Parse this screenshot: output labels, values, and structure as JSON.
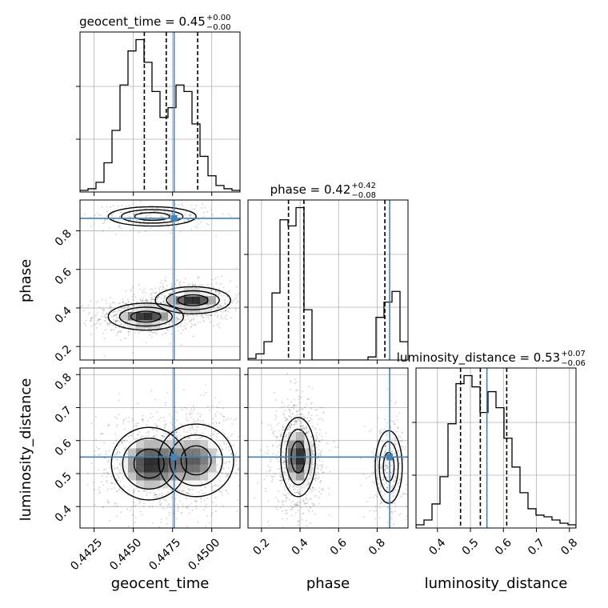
{
  "chart_data": {
    "type": "corner",
    "parameters": [
      "geocent_time",
      "phase",
      "luminosity_distance"
    ],
    "truths": {
      "geocent_time": 0.4476,
      "phase": 0.865,
      "luminosity_distance": 0.55
    },
    "ranges": {
      "geocent_time": [
        0.4416,
        0.4518
      ],
      "phase": [
        0.13,
        0.96
      ],
      "luminosity_distance": [
        0.335,
        0.82
      ]
    },
    "ticks": {
      "geocent_time": [
        "0.4425",
        "0.4450",
        "0.4475",
        "0.4500"
      ],
      "phase": [
        "0.2",
        "0.4",
        "0.6",
        "0.8"
      ],
      "luminosity_distance": [
        "0.4",
        "0.5",
        "0.6",
        "0.7",
        "0.8"
      ]
    },
    "diag_titles": [
      {
        "param": "geocent_time",
        "text": "geocent_time = 0.45",
        "sup": "+0.00",
        "sub": "−0.00"
      },
      {
        "param": "phase",
        "text": "phase = 0.42",
        "sup": "+0.42",
        "sub": "−0.08"
      },
      {
        "param": "luminosity_distance",
        "text": "luminosity_distance = 0.53",
        "sup": "+0.07",
        "sub": "−0.06"
      }
    ],
    "quantiles": {
      "geocent_time": [
        0.4457,
        0.4471,
        0.4491
      ],
      "phase": [
        0.34,
        0.42,
        0.84
      ],
      "luminosity_distance": [
        0.47,
        0.53,
        0.61
      ]
    },
    "histograms": {
      "geocent_time": {
        "edges": [
          0.4416,
          0.44211,
          0.44262,
          0.44313,
          0.44364,
          0.44415,
          0.44466,
          0.44517,
          0.44568,
          0.44619,
          0.4467,
          0.44721,
          0.44772,
          0.44823,
          0.44874,
          0.44925,
          0.44976,
          0.45027,
          0.45078,
          0.45129,
          0.4518
        ],
        "counts": [
          1,
          2,
          6,
          18,
          38,
          66,
          87,
          94,
          80,
          62,
          46,
          52,
          66,
          62,
          42,
          22,
          10,
          4,
          2,
          1
        ]
      },
      "phase": {
        "edges": [
          0.13,
          0.1715,
          0.213,
          0.2545,
          0.296,
          0.3375,
          0.379,
          0.4205,
          0.462,
          0.5035,
          0.545,
          0.5865,
          0.628,
          0.6695,
          0.711,
          0.7525,
          0.794,
          0.8355,
          0.877,
          0.9185,
          0.96
        ],
        "counts": [
          1,
          4,
          12,
          44,
          92,
          88,
          100,
          33,
          0,
          0,
          0,
          0,
          0,
          0,
          0,
          2,
          28,
          38,
          45,
          12
        ]
      },
      "luminosity_distance": {
        "edges": [
          0.335,
          0.35925,
          0.3835,
          0.40775,
          0.432,
          0.45625,
          0.4805,
          0.50475,
          0.529,
          0.55325,
          0.5775,
          0.60175,
          0.626,
          0.65025,
          0.6745,
          0.69875,
          0.723,
          0.74725,
          0.7715,
          0.79575,
          0.82
        ],
        "counts": [
          2,
          5,
          15,
          32,
          65,
          90,
          95,
          88,
          72,
          85,
          75,
          56,
          38,
          22,
          12,
          8,
          7,
          5,
          3,
          2
        ]
      }
    },
    "density_2d": {
      "phase_vs_geocent_time": {
        "blobs": [
          {
            "x": 0.4458,
            "y": 0.355,
            "sx": 0.0012,
            "sy": 0.035,
            "w": 0.5
          },
          {
            "x": 0.4488,
            "y": 0.44,
            "sx": 0.0012,
            "sy": 0.035,
            "w": 0.5
          },
          {
            "x": 0.4462,
            "y": 0.875,
            "sx": 0.0014,
            "sy": 0.025,
            "w": 0.2
          }
        ]
      },
      "luminosity_distance_vs_geocent_time": {
        "blobs": [
          {
            "x": 0.446,
            "y": 0.53,
            "sx": 0.0012,
            "sy": 0.055,
            "w": 0.55
          },
          {
            "x": 0.449,
            "y": 0.54,
            "sx": 0.0012,
            "sy": 0.055,
            "w": 0.45
          }
        ]
      },
      "luminosity_distance_vs_phase": {
        "blobs": [
          {
            "x": 0.39,
            "y": 0.55,
            "sx": 0.045,
            "sy": 0.06,
            "w": 0.75
          },
          {
            "x": 0.86,
            "y": 0.52,
            "sx": 0.035,
            "sy": 0.055,
            "w": 0.25
          }
        ]
      }
    },
    "colors": {
      "truth": "#4682b4",
      "hist": "#000000",
      "grid": "#b0b0b0",
      "quantile": "#000000"
    },
    "grid": true
  }
}
